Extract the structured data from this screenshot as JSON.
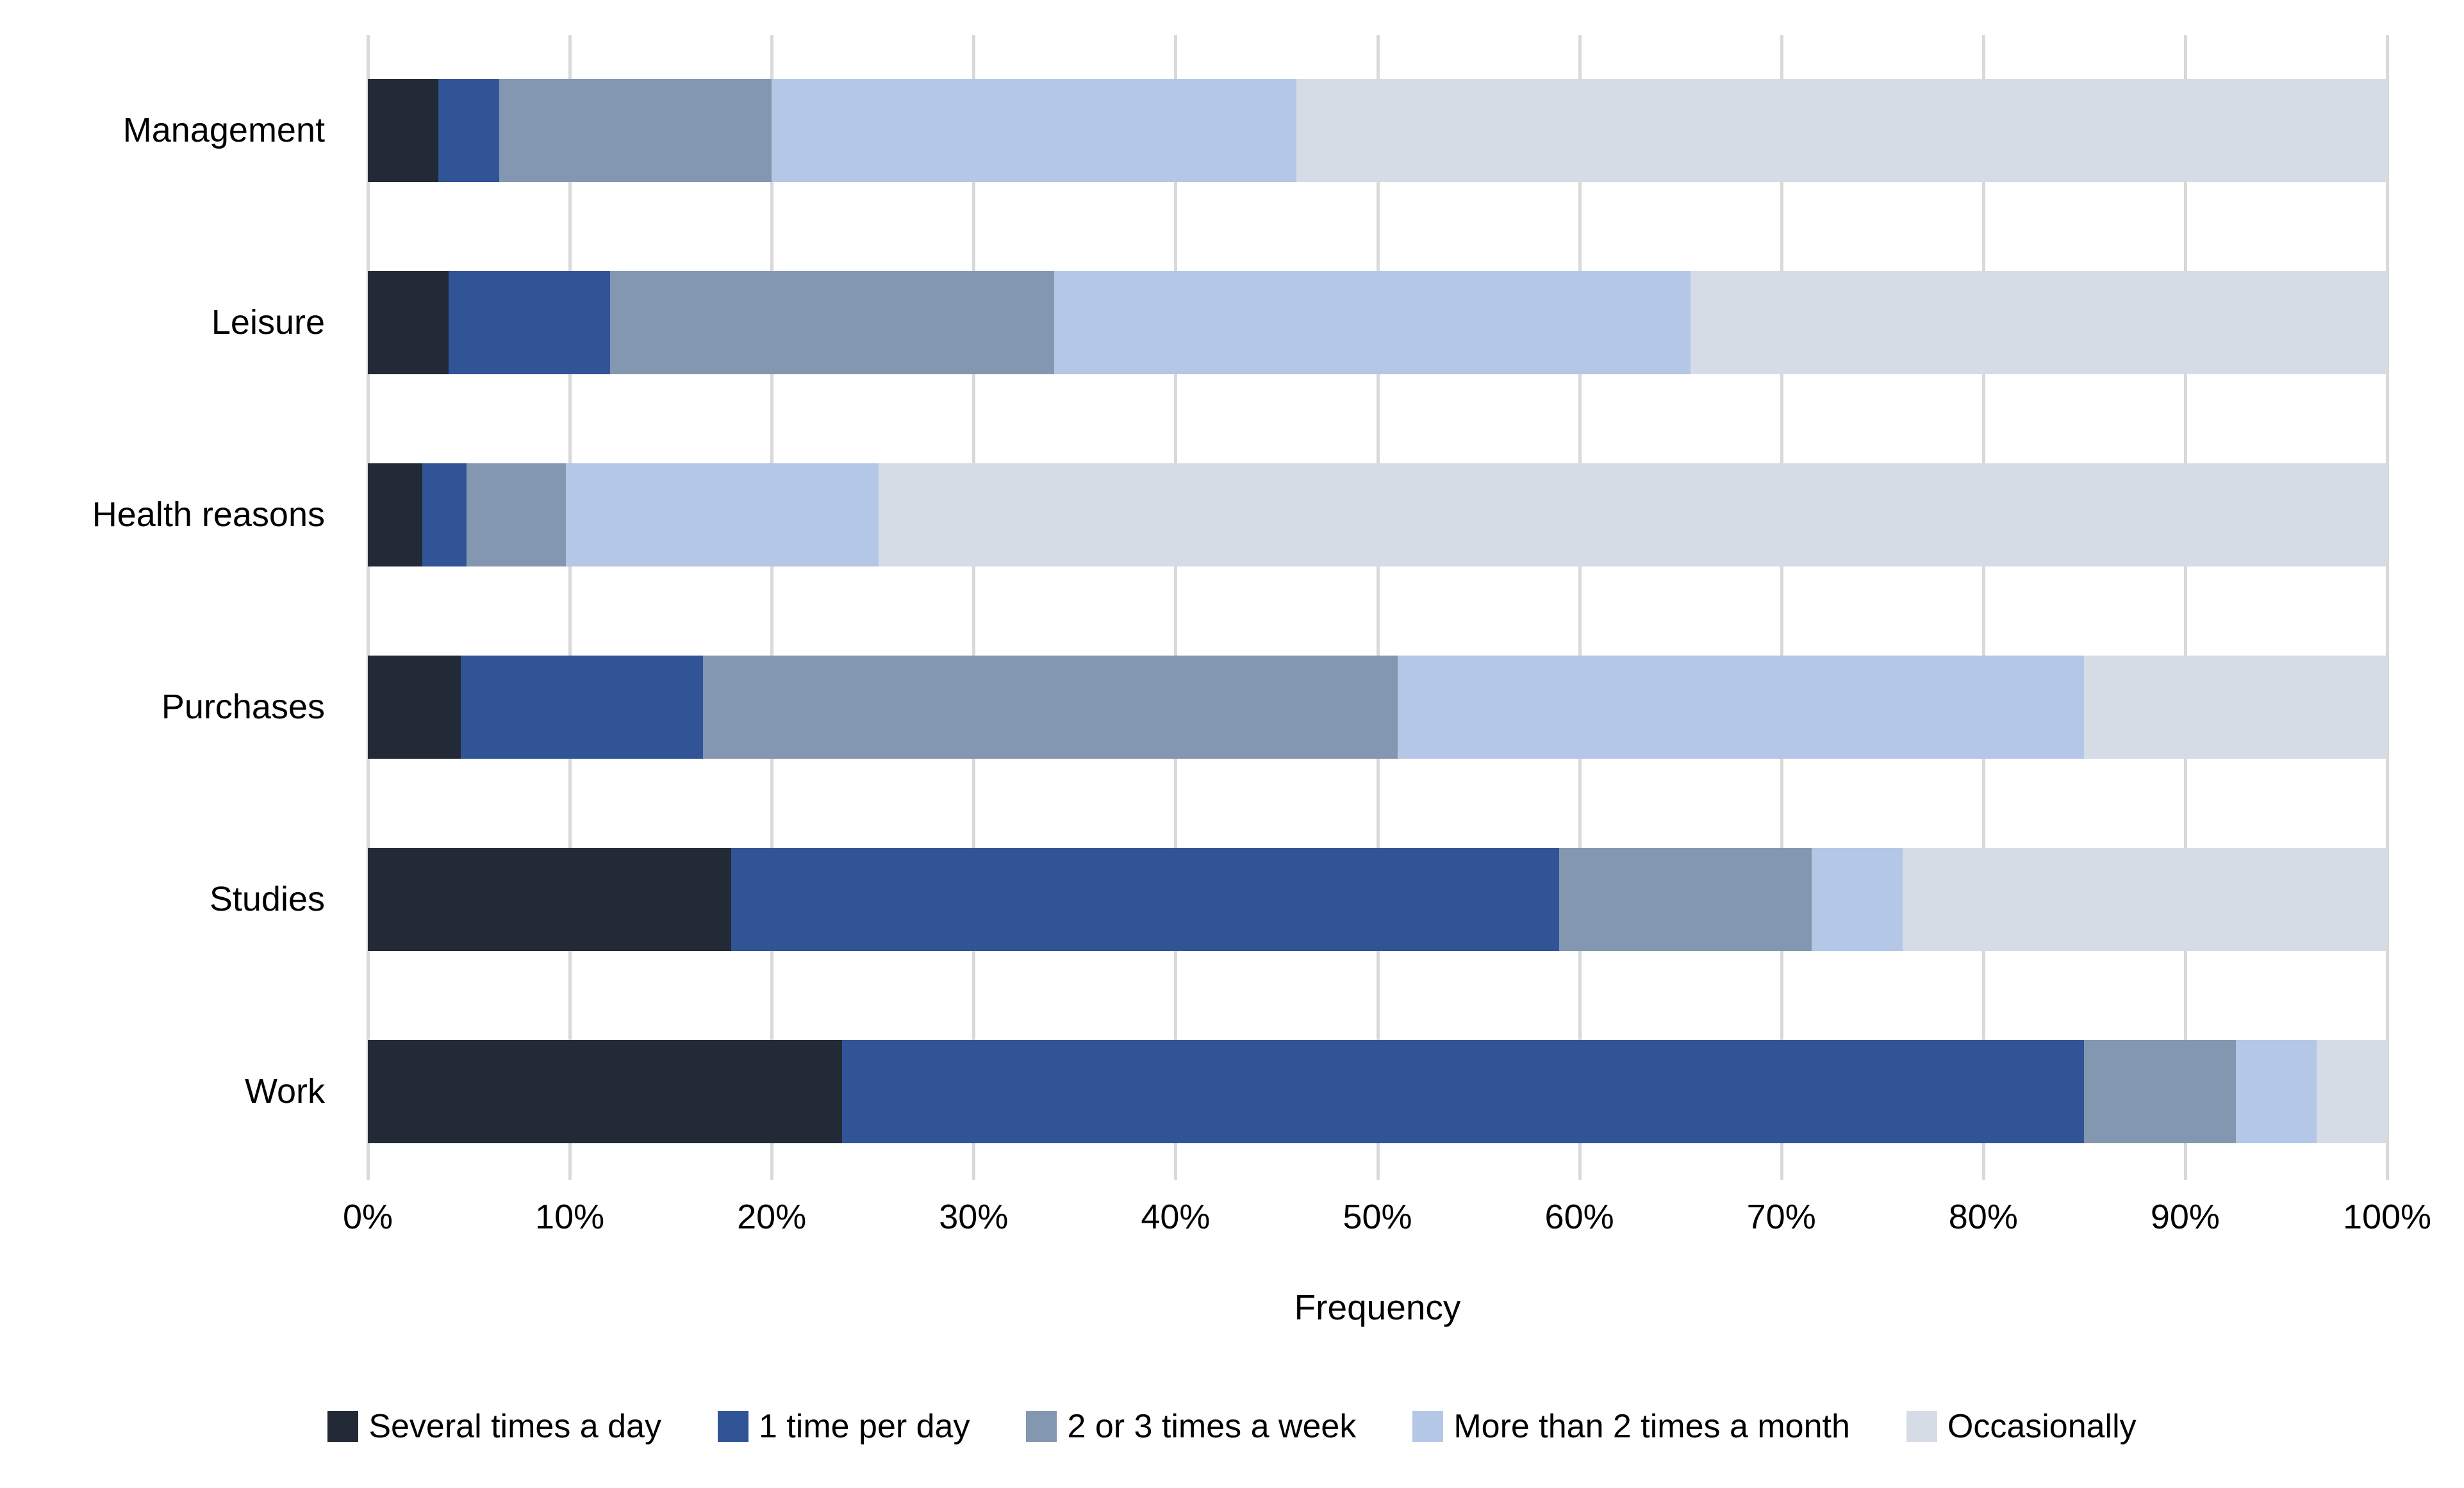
{
  "chart_data": {
    "type": "bar",
    "orientation": "horizontal",
    "stacked": true,
    "title": "",
    "xlabel": "Frequency",
    "ylabel": "",
    "xlim": [
      0,
      100
    ],
    "x_ticks": [
      "0%",
      "10%",
      "20%",
      "30%",
      "40%",
      "50%",
      "60%",
      "70%",
      "80%",
      "90%",
      "100%"
    ],
    "grid": "vertical",
    "gridline_color": "#D9D9D9",
    "legend_position": "bottom",
    "categories": [
      "Management",
      "Leisure",
      "Health reasons",
      "Purchases",
      "Studies",
      "Work"
    ],
    "series": [
      {
        "name": "Several times a day",
        "color": "#222A35",
        "values": [
          3.5,
          4,
          2.7,
          4.6,
          18,
          23.5
        ]
      },
      {
        "name": "1 time per day",
        "color": "#305496",
        "values": [
          3,
          8,
          2.2,
          12,
          41,
          61.5
        ]
      },
      {
        "name": "2 or 3 times a week",
        "color": "#8497B0",
        "values": [
          13.5,
          22,
          4.9,
          34.4,
          12.5,
          7.5
        ]
      },
      {
        "name": "More than 2 times a month",
        "color": "#B4C7E7",
        "values": [
          26,
          31.5,
          15.5,
          34,
          4.5,
          4
        ]
      },
      {
        "name": "Occasionally",
        "color": "#D6DCE5",
        "values": [
          54,
          34.5,
          74.7,
          15,
          24,
          3.5
        ]
      }
    ]
  },
  "layout_text": {
    "xaxis_title": "Frequency"
  }
}
